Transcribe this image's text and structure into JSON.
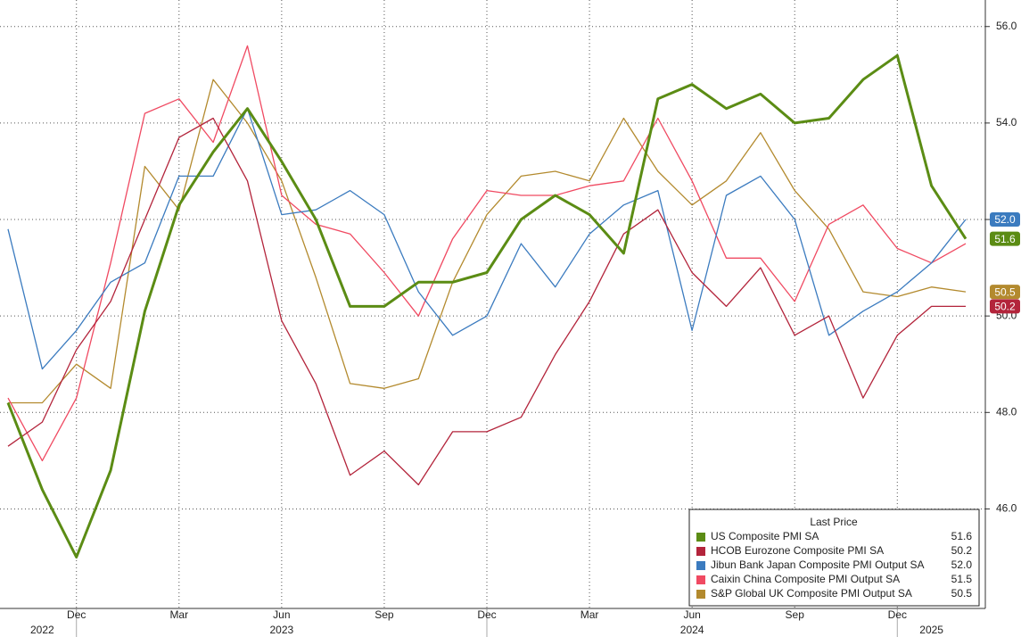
{
  "chart_data": {
    "type": "line",
    "x": [
      "2022-10",
      "2022-11",
      "2022-12",
      "2023-01",
      "2023-02",
      "2023-03",
      "2023-04",
      "2023-05",
      "2023-06",
      "2023-07",
      "2023-08",
      "2023-09",
      "2023-10",
      "2023-11",
      "2023-12",
      "2024-01",
      "2024-02",
      "2024-03",
      "2024-04",
      "2024-05",
      "2024-06",
      "2024-07",
      "2024-08",
      "2024-09",
      "2024-10",
      "2024-11",
      "2024-12",
      "2025-01",
      "2025-02"
    ],
    "series": [
      {
        "name": "US Composite PMI SA",
        "color": "#5b8c14",
        "width": 3,
        "last_price": "51.6",
        "axis_tag": true,
        "values": [
          48.2,
          46.4,
          45.0,
          46.8,
          50.1,
          52.3,
          53.4,
          54.3,
          53.2,
          52.0,
          50.2,
          50.2,
          50.7,
          50.7,
          50.9,
          52.0,
          52.5,
          52.1,
          51.3,
          54.5,
          54.8,
          54.3,
          54.6,
          54.0,
          54.1,
          54.9,
          55.4,
          52.7,
          51.6
        ]
      },
      {
        "name": "HCOB Eurozone Composite PMI SA",
        "color": "#b3243b",
        "width": 1.3,
        "last_price": "50.2",
        "axis_tag": true,
        "values": [
          47.3,
          47.8,
          49.3,
          50.3,
          52.0,
          53.7,
          54.1,
          52.8,
          49.9,
          48.6,
          46.7,
          47.2,
          46.5,
          47.6,
          47.6,
          47.9,
          49.2,
          50.3,
          51.7,
          52.2,
          50.9,
          50.2,
          51.0,
          49.6,
          50.0,
          48.3,
          49.6,
          50.2,
          50.2
        ]
      },
      {
        "name": "Jibun Bank Japan Composite PMI Output SA",
        "color": "#3b7bbf",
        "width": 1.3,
        "last_price": "52.0",
        "axis_tag": true,
        "values": [
          51.8,
          48.9,
          49.7,
          50.7,
          51.1,
          52.9,
          52.9,
          54.3,
          52.1,
          52.2,
          52.6,
          52.1,
          50.5,
          49.6,
          50.0,
          51.5,
          50.6,
          51.7,
          52.3,
          52.6,
          49.7,
          52.5,
          52.9,
          52.0,
          49.6,
          50.1,
          50.5,
          51.1,
          52.0
        ]
      },
      {
        "name": "Caixin China Composite PMI Output SA",
        "color": "#f04a62",
        "width": 1.3,
        "last_price": "51.5",
        "axis_tag": false,
        "values": [
          48.3,
          47.0,
          48.3,
          51.1,
          54.2,
          54.5,
          53.6,
          55.6,
          52.5,
          51.9,
          51.7,
          50.9,
          50.0,
          51.6,
          52.6,
          52.5,
          52.5,
          52.7,
          52.8,
          54.1,
          52.8,
          51.2,
          51.2,
          50.3,
          51.9,
          52.3,
          51.4,
          51.1,
          51.5
        ]
      },
      {
        "name": "S&P Global UK Composite PMI Output SA",
        "color": "#b38a2e",
        "width": 1.3,
        "last_price": "50.5",
        "axis_tag": true,
        "values": [
          48.2,
          48.2,
          49.0,
          48.5,
          53.1,
          52.2,
          54.9,
          54.0,
          52.8,
          50.8,
          48.6,
          48.5,
          48.7,
          50.7,
          52.1,
          52.9,
          53.0,
          52.8,
          54.1,
          53.0,
          52.3,
          52.8,
          53.8,
          52.6,
          51.8,
          50.5,
          50.4,
          50.6,
          50.5
        ]
      }
    ],
    "legend_title": "Last Price",
    "xlim": [
      "2022-10",
      "2025-02"
    ],
    "xticks": [
      {
        "value": "2022-12",
        "label": "Dec"
      },
      {
        "value": "2023-03",
        "label": "Mar"
      },
      {
        "value": "2023-06",
        "label": "Jun"
      },
      {
        "value": "2023-09",
        "label": "Sep"
      },
      {
        "value": "2023-12",
        "label": "Dec"
      },
      {
        "value": "2024-03",
        "label": "Mar"
      },
      {
        "value": "2024-06",
        "label": "Jun"
      },
      {
        "value": "2024-09",
        "label": "Sep"
      },
      {
        "value": "2024-12",
        "label": "Dec"
      }
    ],
    "year_ticks": [
      {
        "value": "2022-11",
        "label": "2022"
      },
      {
        "value": "2023-06",
        "label": "2023"
      },
      {
        "value": "2024-06",
        "label": "2024"
      },
      {
        "value": "2025-01",
        "label": "2025"
      }
    ],
    "ylim": [
      43.9,
      56.55
    ],
    "yticks": [
      {
        "value": 46,
        "label": "46.0"
      },
      {
        "value": 48,
        "label": "48.0"
      },
      {
        "value": 50,
        "label": "50.0"
      },
      {
        "value": 52,
        "label": "52.0"
      },
      {
        "value": 54,
        "label": "54.0"
      },
      {
        "value": 56,
        "label": "56.0"
      }
    ],
    "grid": true
  }
}
